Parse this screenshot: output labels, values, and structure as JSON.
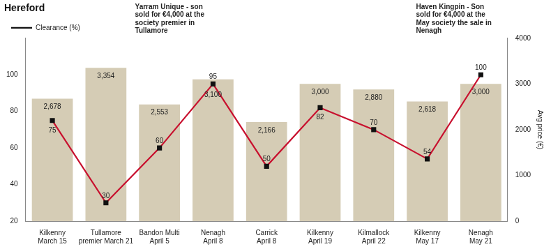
{
  "chart_data": {
    "type": "bar",
    "title": "Hereford",
    "categories": [
      "Kilkenny March 15",
      "Tullamore premier March 21",
      "Bandon Multi April 5",
      "Nenagh April 8",
      "Carrick April 8",
      "Kilkenny April 19",
      "Kilmallock April 22",
      "Kilkenny May 17",
      "Nenagh May 21"
    ],
    "series": [
      {
        "name": "Clearance (%)",
        "type": "line",
        "color": "#c8102e",
        "marker": "square",
        "values": [
          75,
          30,
          60,
          95,
          50,
          82,
          70,
          54,
          100
        ]
      },
      {
        "type": "bar",
        "color": "#d5ccb5",
        "axis": "y2",
        "values": [
          2678,
          3354,
          2553,
          3100,
          2166,
          3000,
          2880,
          2618,
          3000
        ],
        "value_labels": [
          "2,678",
          "3,354",
          "2,553",
          "3,100",
          "2,166",
          "3,000",
          "2,880",
          "2,618",
          "3,000"
        ]
      }
    ],
    "ylim": [
      20,
      120
    ],
    "yticks": [
      20,
      40,
      60,
      80,
      100
    ],
    "y2lim": [
      0,
      4000
    ],
    "y2ticks": [
      0,
      1000,
      2000,
      3000,
      4000
    ],
    "y2_label": "Avg price (€)",
    "legend": "top-left",
    "data_labels": true,
    "grid": false,
    "annotations": [
      "Yarram Unique - son sold for €4,000 at the society premier in Tullamore",
      "Haven Kingpin - Son sold for €4,000 at the May society the sale in Nenagh"
    ]
  }
}
